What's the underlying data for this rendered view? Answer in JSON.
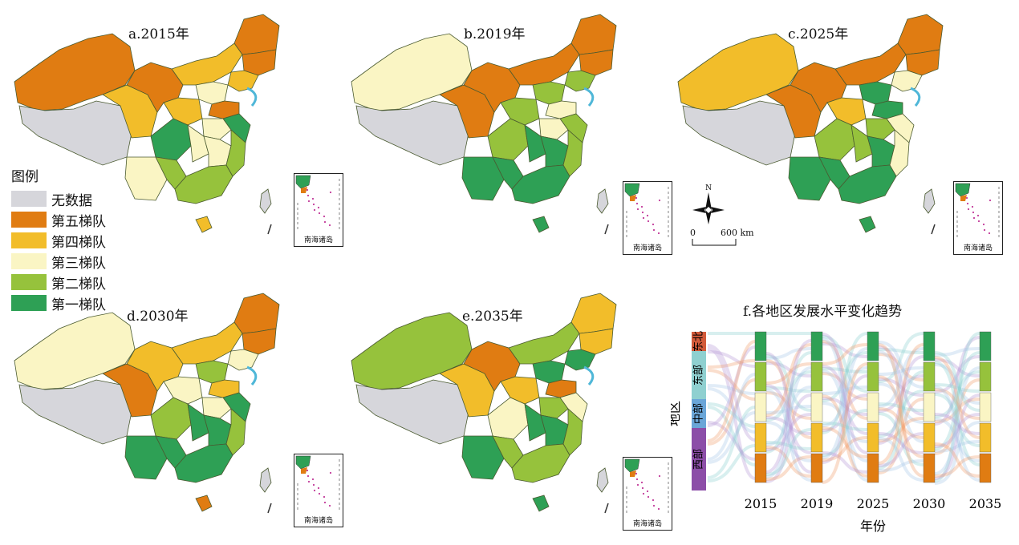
{
  "panels": [
    {
      "id": "a",
      "title": "a.2015年"
    },
    {
      "id": "b",
      "title": "b.2019年"
    },
    {
      "id": "c",
      "title": "c.2025年"
    },
    {
      "id": "d",
      "title": "d.2030年"
    },
    {
      "id": "e",
      "title": "e.2035年"
    }
  ],
  "legend": {
    "title": "图例",
    "items": [
      {
        "label": "无数据",
        "color": "#d6d6db"
      },
      {
        "label": "第五梯队",
        "color": "#e07c12"
      },
      {
        "label": "第四梯队",
        "color": "#f2bd2a"
      },
      {
        "label": "第三梯队",
        "color": "#faf5c4"
      },
      {
        "label": "第二梯队",
        "color": "#96c23c"
      },
      {
        "label": "第一梯队",
        "color": "#2ea055"
      }
    ]
  },
  "inset_label": "南海诸岛",
  "compass_label": "N",
  "scale": {
    "zero": "0",
    "distance": "600 km"
  },
  "sankey": {
    "title": "f.各地区发展水平变化趋势",
    "ylabel": "地区",
    "xlabel": "年份",
    "years": [
      "2015",
      "2019",
      "2025",
      "2030",
      "2035"
    ],
    "regions": [
      {
        "label": "东北",
        "color": "#d25a3a"
      },
      {
        "label": "东部",
        "color": "#8fd0d0"
      },
      {
        "label": "中部",
        "color": "#6aa6d8"
      },
      {
        "label": "西部",
        "color": "#8c4ea8"
      }
    ]
  }
}
